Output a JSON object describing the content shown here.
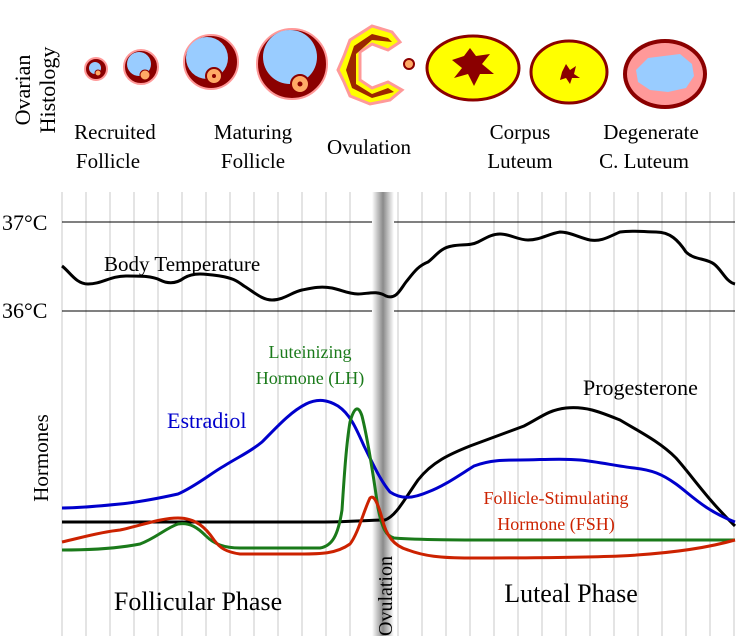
{
  "histology": {
    "axis_label_line1": "Ovarian",
    "axis_label_line2": "Histology",
    "stages": [
      {
        "line1": "Recruited",
        "line2": "Follicle"
      },
      {
        "line1": "Maturing",
        "line2": "Follicle"
      },
      {
        "line1": "Ovulation",
        "line2": ""
      },
      {
        "line1": "Corpus",
        "line2": "Luteum"
      },
      {
        "line1": "Degenerate",
        "line2": "C. Luteum"
      }
    ]
  },
  "temperature": {
    "tick_high": "37°C",
    "tick_low": "36°C",
    "curve_label": "Body Temperature"
  },
  "hormones": {
    "axis_label": "Hormones",
    "lh_label_line1": "Luteinizing",
    "lh_label_line2": "Hormone (LH)",
    "estradiol_label": "Estradiol",
    "progesterone_label": "Progesterone",
    "fsh_label_line1": "Follicle-Stimulating",
    "fsh_label_line2": "Hormone (FSH)"
  },
  "phases": {
    "follicular": "Follicular Phase",
    "luteal": "Luteal Phase",
    "ovulation_vertical": "Ovulation"
  },
  "colors": {
    "estradiol": "#0000cc",
    "lh": "#1a7a1a",
    "fsh": "#cc2200",
    "progesterone": "#000000",
    "temperature": "#000000",
    "follicle_outer": "#8b0000",
    "follicle_inner": "#99ccff",
    "corpus_yellow": "#ffff00",
    "degenerate_pink": "#ff9999"
  }
}
